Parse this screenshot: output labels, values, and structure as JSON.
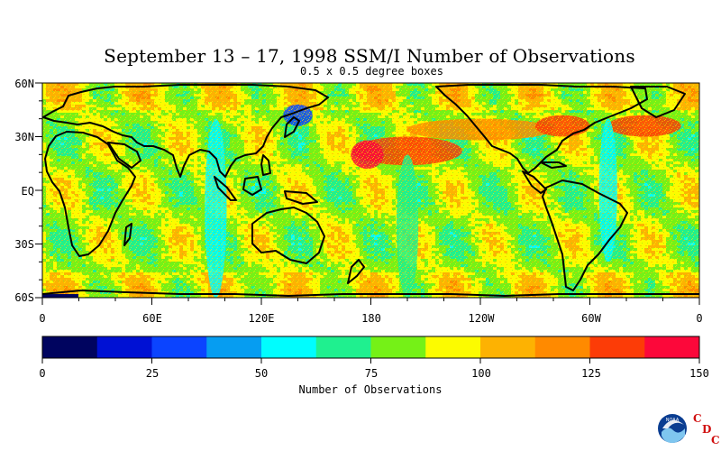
{
  "title": "September 13 – 17, 1998 SSM/I Number of Observations",
  "subtitle": "0.5 x 0.5 degree boxes",
  "y_tick_labels": [
    "60N",
    "30N",
    "EQ",
    "30S",
    "60S"
  ],
  "x_tick_labels": [
    "0",
    "60E",
    "120E",
    "180",
    "120W",
    "60W",
    "0"
  ],
  "colorbar": {
    "colors": [
      "#00045f",
      "#0011d4",
      "#0b44ff",
      "#069df1",
      "#00fdfe",
      "#1ff08f",
      "#75f117",
      "#fcfb00",
      "#fdb202",
      "#ff8a00",
      "#fc3c07",
      "#fc083a"
    ],
    "tick_labels": [
      "0",
      "25",
      "50",
      "75",
      "100",
      "125",
      "150"
    ],
    "title": "Number of Observations"
  },
  "logo": {
    "name": "NOAA",
    "letters": [
      "C",
      "D",
      "C"
    ]
  },
  "chart_data": {
    "type": "heatmap",
    "title": "September 13 – 17, 1998 SSM/I Number of Observations",
    "subtitle": "0.5 x 0.5 degree boxes",
    "x_range_degrees_east": [
      0,
      360
    ],
    "y_range_degrees_lat": [
      -60,
      60
    ],
    "colorbar_range": [
      0,
      150
    ],
    "colorbar_label": "Number of Observations",
    "typical_value_range": [
      60,
      100
    ],
    "high_count_regions": [
      {
        "region": "central Pacific near 20N",
        "approx_value": 130
      },
      {
        "region": "western North Atlantic near 35N",
        "approx_value": 130
      },
      {
        "region": "eastern North Pacific near 35N",
        "approx_value": 115
      }
    ],
    "low_count_regions": [
      {
        "region": "Antarctic coast south of 60S",
        "approx_value": 0
      },
      {
        "region": "sea of Okhotsk / northwest Pacific near 45N",
        "approx_value": 25
      }
    ]
  }
}
